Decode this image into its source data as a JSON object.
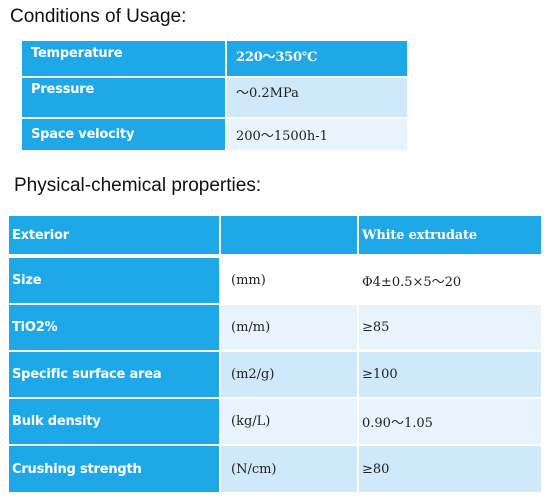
{
  "conditions": {
    "heading": "Conditions of Usage:",
    "rows": [
      {
        "label": "Temperature",
        "value": "220～350℃"
      },
      {
        "label": "Pressure",
        "value": "～0.2MPa"
      },
      {
        "label": "Space velocity",
        "value": "200～1500h-1"
      }
    ]
  },
  "properties": {
    "heading": "Physical-chemical properties:",
    "rows": [
      {
        "label": "Exterior",
        "unit": "",
        "value": "White  extrudate"
      },
      {
        "label": "Size",
        "unit": "(mm)",
        "value": "Φ4±0.5×5～20"
      },
      {
        "label": "TiO2%",
        "unit": "(m/m)",
        "value": "≥85"
      },
      {
        "label": "Specific surface area",
        "unit": "(m2/g)",
        "value": "≥100"
      },
      {
        "label": "Bulk density",
        "unit": "(kg/L)",
        "value": "0.90～1.05"
      },
      {
        "label": "Crushing strength",
        "unit": "(N/cm)",
        "value": "≥80"
      }
    ]
  },
  "colors": {
    "header_blue": "#1fa8e8",
    "light_blue": "#cfe8fa",
    "lighter_blue": "#e8f4fd"
  }
}
